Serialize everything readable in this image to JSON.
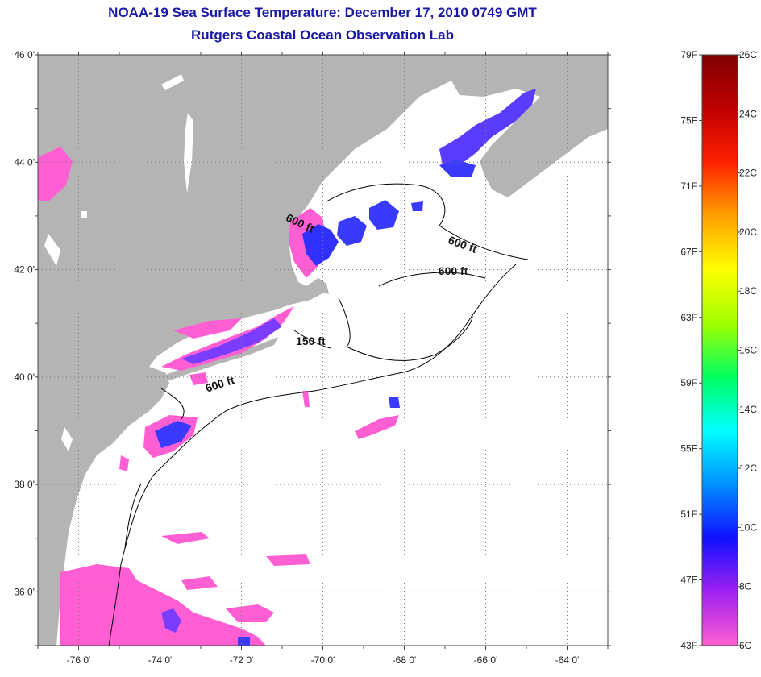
{
  "title": {
    "line1": "NOAA-19 Sea Surface Temperature:  December 17, 2010 0749 GMT",
    "line2": "Rutgers Coastal Ocean Observation Lab"
  },
  "map": {
    "lon_range": [
      -77,
      -63
    ],
    "lat_range": [
      35,
      46
    ],
    "lon_ticks": [
      {
        "value": -76,
        "label": "-76 0'"
      },
      {
        "value": -74,
        "label": "-74 0'"
      },
      {
        "value": -72,
        "label": "-72 0'"
      },
      {
        "value": -70,
        "label": "-70 0'"
      },
      {
        "value": -68,
        "label": "-68 0'"
      },
      {
        "value": -66,
        "label": "-66 0'"
      },
      {
        "value": -64,
        "label": "-64 0'"
      }
    ],
    "lat_ticks": [
      {
        "value": 46,
        "label": "46 0'"
      },
      {
        "value": 44,
        "label": "44 0'"
      },
      {
        "value": 42,
        "label": "42 0'"
      },
      {
        "value": 40,
        "label": "40 0'"
      },
      {
        "value": 38,
        "label": "38 0'"
      },
      {
        "value": 36,
        "label": "36 0'"
      }
    ],
    "grid": "dotted",
    "land_color": "#b4b4b4",
    "ocean_color": "#ffffff",
    "contour_labels": [
      {
        "text": "600 ft",
        "lon": -70.6,
        "lat": 42.8,
        "rotate": 25
      },
      {
        "text": "600 ft",
        "lon": -66.6,
        "lat": 42.4,
        "rotate": 20
      },
      {
        "text": "600 ft",
        "lon": -66.8,
        "lat": 41.9,
        "rotate": 0
      },
      {
        "text": "150 ft",
        "lon": -70.3,
        "lat": 40.6,
        "rotate": 0
      },
      {
        "text": "600 ft",
        "lon": -72.5,
        "lat": 39.8,
        "rotate": -18
      }
    ]
  },
  "colorbar": {
    "left_labels": [
      "79F",
      "75F",
      "71F",
      "67F",
      "63F",
      "59F",
      "55F",
      "51F",
      "47F",
      "43F"
    ],
    "right_labels": [
      "26C",
      "24C",
      "22C",
      "20C",
      "18C",
      "16C",
      "14C",
      "12C",
      "10C",
      "8C",
      "6C"
    ],
    "colors": [
      "#ff5fd2",
      "#a020f0",
      "#1010ff",
      "#0090ff",
      "#00ffff",
      "#00ff60",
      "#a0ff00",
      "#ffff00",
      "#ffa000",
      "#ff2000",
      "#c00000",
      "#800000"
    ]
  }
}
